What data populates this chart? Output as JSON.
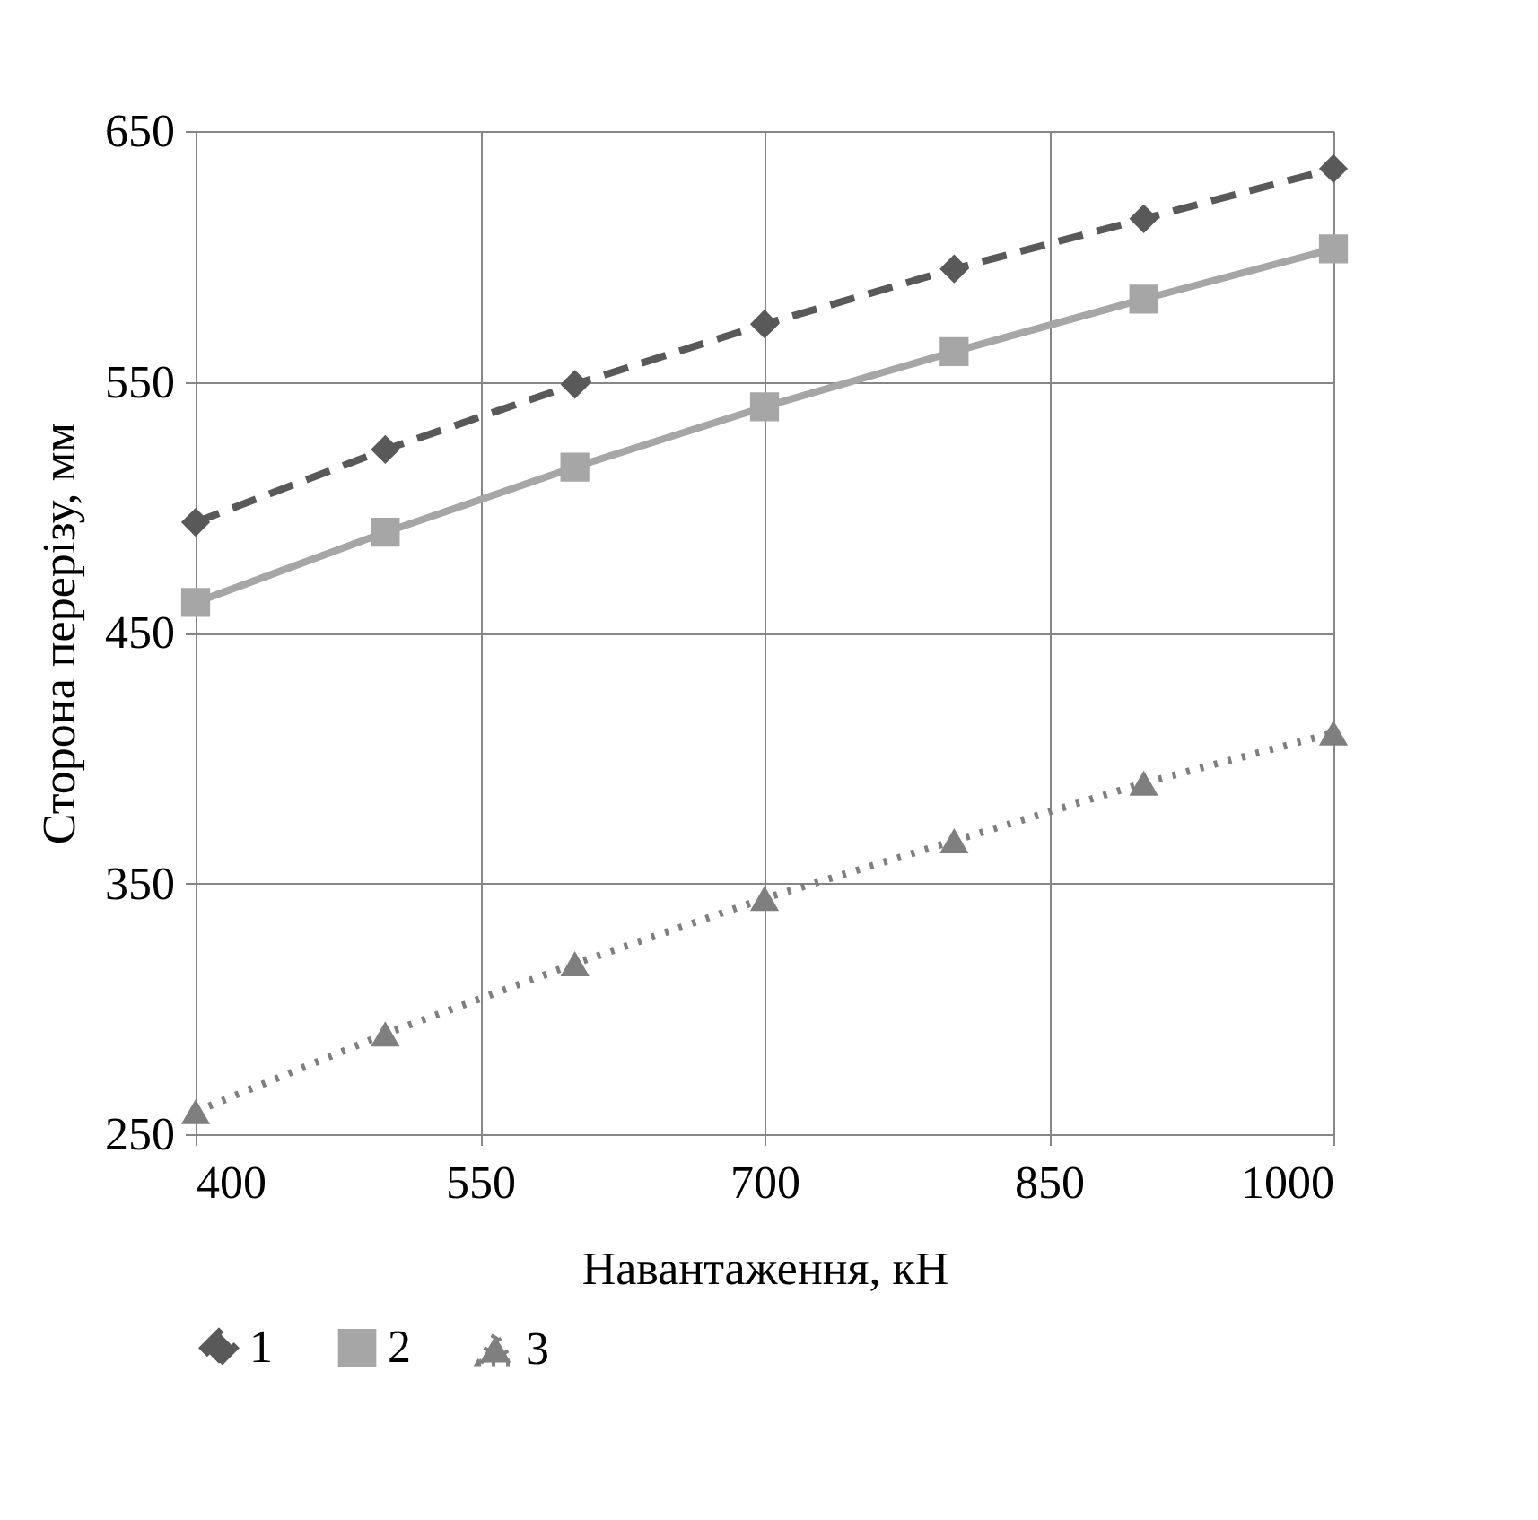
{
  "chart_data": {
    "type": "line",
    "xlabel": "Навантаження, кН",
    "ylabel": "Сторона перерізу, мм",
    "x": [
      400,
      500,
      600,
      700,
      800,
      900,
      1000
    ],
    "xlim": [
      400,
      1000
    ],
    "xticks": [
      400,
      550,
      700,
      850,
      1000
    ],
    "ylim": [
      250,
      650
    ],
    "yticks": [
      250,
      350,
      450,
      550,
      650
    ],
    "grid": true,
    "legend": "bottom",
    "series": [
      {
        "name": "1",
        "color": "#595959",
        "marker": "diamond",
        "line_style": "dashed",
        "values": [
          494,
          523,
          549,
          573,
          595,
          615,
          635
        ]
      },
      {
        "name": "2",
        "color": "#a6a6a6",
        "marker": "square",
        "line_style": "solid",
        "values": [
          462,
          490,
          516,
          540,
          562,
          583,
          603
        ]
      },
      {
        "name": "3",
        "color": "#7f7f7f",
        "marker": "triangle",
        "line_style": "dotted",
        "values": [
          259,
          290,
          318,
          344,
          367,
          390,
          410
        ]
      }
    ]
  }
}
